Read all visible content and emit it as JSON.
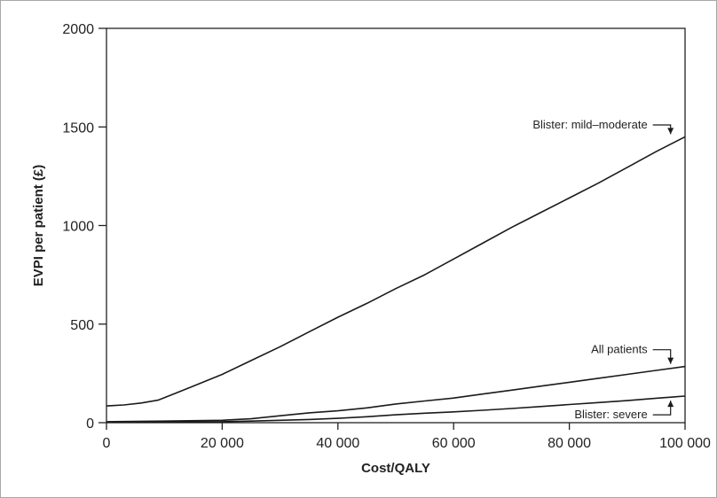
{
  "chart_data": {
    "type": "line",
    "xlabel": "Cost/QALY",
    "ylabel": "EVPI per patient (£)",
    "xlim": [
      0,
      100000
    ],
    "ylim": [
      0,
      2000
    ],
    "x_ticks": [
      0,
      20000,
      40000,
      60000,
      80000,
      100000
    ],
    "x_tick_labels": [
      "0",
      "20 000",
      "40 000",
      "60 000",
      "80 000",
      "100 000"
    ],
    "y_ticks": [
      0,
      500,
      1000,
      1500,
      2000
    ],
    "y_tick_labels": [
      "0",
      "500",
      "1000",
      "1500",
      "2000"
    ],
    "grid": false,
    "series": [
      {
        "name": "Blister: mild–moderate",
        "x": [
          0,
          3000,
          6000,
          9000,
          12000,
          15000,
          20000,
          25000,
          30000,
          35000,
          40000,
          45000,
          50000,
          55000,
          60000,
          65000,
          70000,
          75000,
          80000,
          85000,
          90000,
          95000,
          100000
        ],
        "y": [
          85,
          90,
          100,
          115,
          150,
          185,
          245,
          315,
          385,
          460,
          535,
          605,
          680,
          750,
          830,
          910,
          990,
          1065,
          1140,
          1215,
          1295,
          1375,
          1450
        ]
      },
      {
        "name": "All patients",
        "x": [
          0,
          10000,
          20000,
          25000,
          30000,
          35000,
          40000,
          45000,
          50000,
          55000,
          60000,
          65000,
          70000,
          75000,
          80000,
          85000,
          90000,
          95000,
          100000
        ],
        "y": [
          5,
          8,
          12,
          20,
          35,
          50,
          60,
          75,
          95,
          110,
          125,
          145,
          165,
          185,
          205,
          225,
          245,
          265,
          285
        ]
      },
      {
        "name": "Blister: severe",
        "x": [
          0,
          10000,
          20000,
          25000,
          30000,
          35000,
          40000,
          45000,
          50000,
          55000,
          60000,
          65000,
          70000,
          75000,
          80000,
          85000,
          90000,
          95000,
          100000
        ],
        "y": [
          2,
          3,
          5,
          8,
          12,
          16,
          22,
          30,
          40,
          48,
          55,
          63,
          72,
          82,
          92,
          102,
          112,
          124,
          135
        ]
      }
    ],
    "annotations": [
      {
        "text": "Blister: mild–moderate",
        "series": 0,
        "target_x": 97500,
        "target_y": 1450,
        "label_y": 1510,
        "direction": "down"
      },
      {
        "text": "All patients",
        "series": 1,
        "target_x": 97500,
        "target_y": 285,
        "label_y": 370,
        "direction": "down"
      },
      {
        "text": "Blister: severe",
        "series": 2,
        "target_x": 97500,
        "target_y": 130,
        "label_y": 40,
        "direction": "up"
      }
    ]
  }
}
